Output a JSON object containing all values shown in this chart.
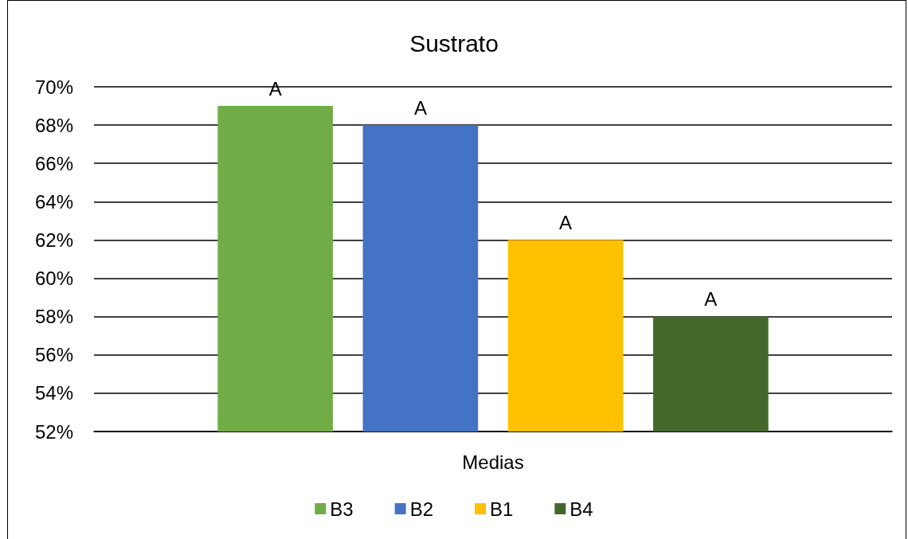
{
  "chart_data": {
    "type": "bar",
    "title": "Sustrato",
    "categories": [
      "Medias"
    ],
    "series": [
      {
        "name": "B3",
        "color": "#70ad47",
        "values": [
          69
        ],
        "value_labels": [
          "A"
        ]
      },
      {
        "name": "B2",
        "color": "#4472c4",
        "values": [
          68
        ],
        "value_labels": [
          "A"
        ]
      },
      {
        "name": "B1",
        "color": "#ffc000",
        "values": [
          62
        ],
        "value_labels": [
          "A"
        ]
      },
      {
        "name": "B4",
        "color": "#43682b",
        "values": [
          58
        ],
        "value_labels": [
          "A"
        ]
      }
    ],
    "ylim": [
      52,
      70
    ],
    "yticks": [
      {
        "value": 52,
        "label": "52%"
      },
      {
        "value": 54,
        "label": "54%"
      },
      {
        "value": 56,
        "label": "56%"
      },
      {
        "value": 58,
        "label": "58%"
      },
      {
        "value": 60,
        "label": "60%"
      },
      {
        "value": 62,
        "label": "62%"
      },
      {
        "value": 64,
        "label": "64%"
      },
      {
        "value": 66,
        "label": "66%"
      },
      {
        "value": 68,
        "label": "68%"
      },
      {
        "value": 70,
        "label": "70%"
      }
    ],
    "grid": "y",
    "legend": "bottom"
  }
}
